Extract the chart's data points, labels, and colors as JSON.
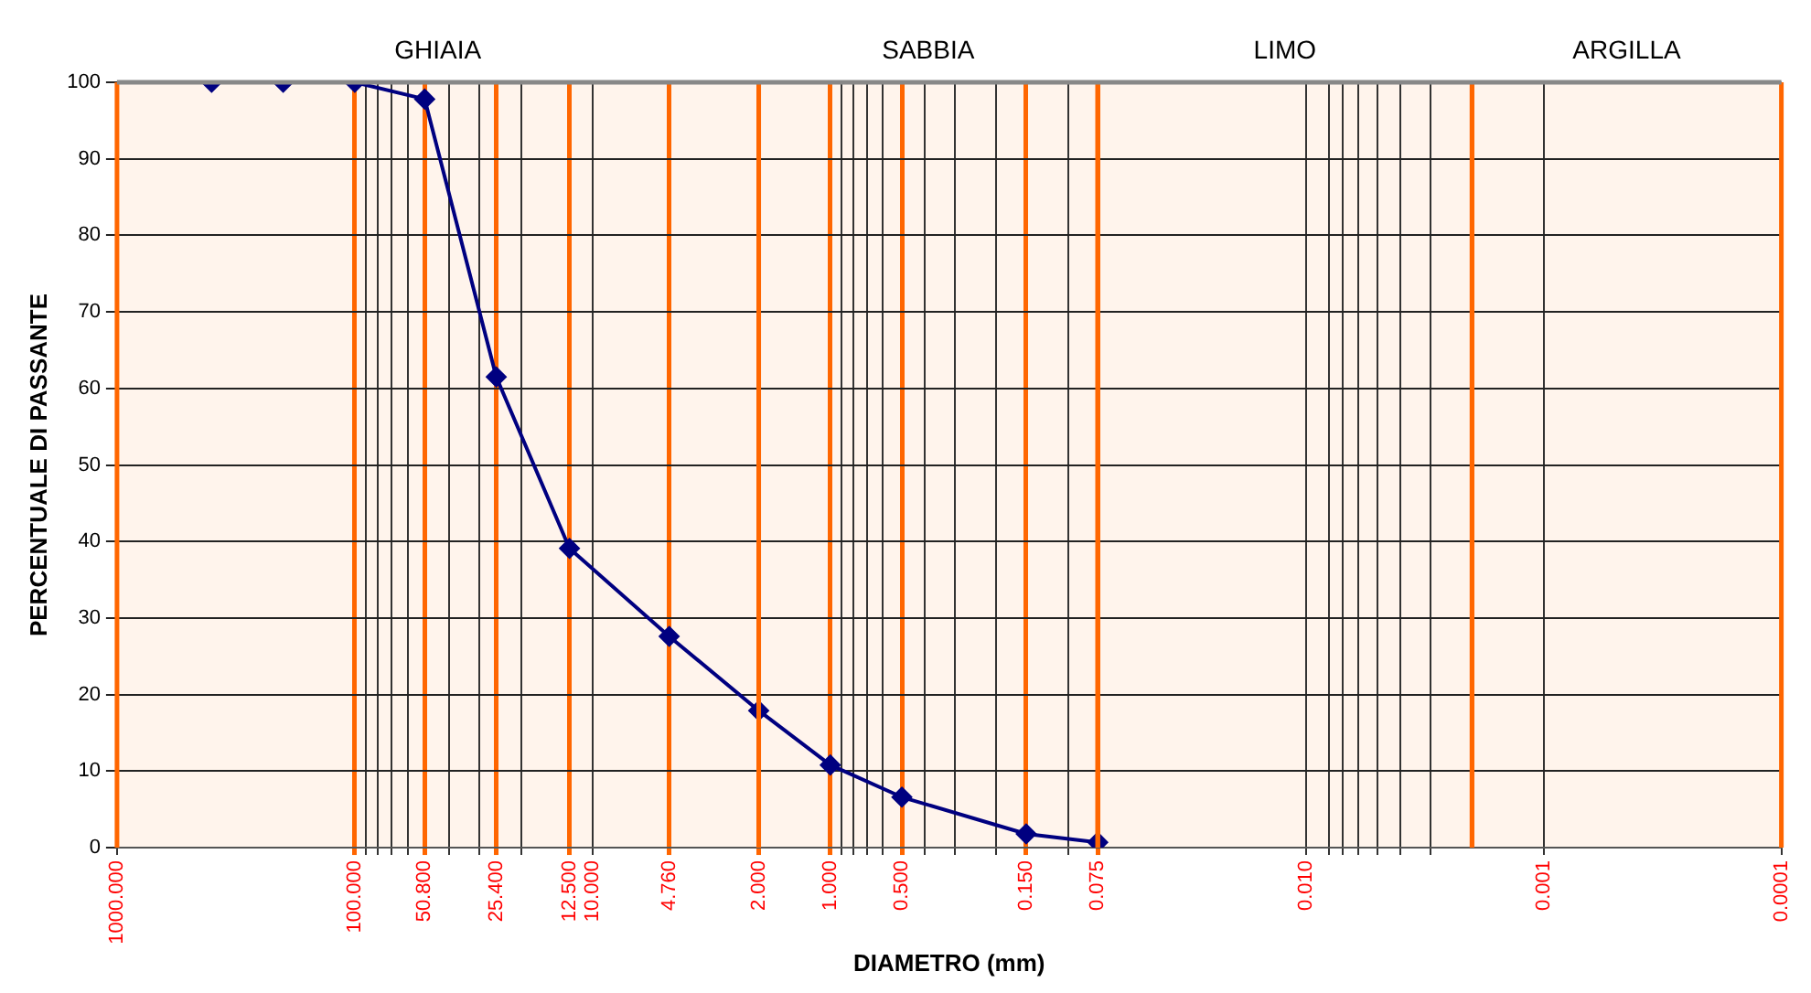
{
  "chart_data": {
    "type": "line",
    "xlabel": "DIAMETRO (mm)",
    "ylabel": "PERCENTUALE DI PASSANTE",
    "x": [
      400,
      200,
      100,
      50.8,
      25.4,
      12.5,
      4.76,
      2,
      1,
      0.5,
      0.15,
      0.075
    ],
    "series": [
      {
        "color": "#000080",
        "values": [
          100,
          100,
          100,
          97.8,
          61.5,
          39.1,
          27.6,
          17.9,
          10.8,
          6.6,
          1.8,
          0.7
        ]
      }
    ],
    "log": "x",
    "xlim": [
      1000,
      0.0001
    ],
    "ylim": [
      0,
      100
    ],
    "xticks": [
      {
        "value": 1000,
        "label": "1000.000"
      },
      {
        "value": 100,
        "label": "100.000"
      },
      {
        "value": 90,
        "label": null
      },
      {
        "value": 80,
        "label": null
      },
      {
        "value": 70,
        "label": null
      },
      {
        "value": 60,
        "label": null
      },
      {
        "value": 50.8,
        "label": "50.800"
      },
      {
        "value": 40,
        "label": null
      },
      {
        "value": 30,
        "label": null
      },
      {
        "value": 25.4,
        "label": "25.400"
      },
      {
        "value": 20,
        "label": null
      },
      {
        "value": 12.5,
        "label": "12.500"
      },
      {
        "value": 10,
        "label": "10.000"
      },
      {
        "value": 4.76,
        "label": "4.760"
      },
      {
        "value": 2,
        "label": "2.000"
      },
      {
        "value": 1,
        "label": "1.000"
      },
      {
        "value": 0.9,
        "label": null
      },
      {
        "value": 0.8,
        "label": null
      },
      {
        "value": 0.7,
        "label": null
      },
      {
        "value": 0.6,
        "label": null
      },
      {
        "value": 0.5,
        "label": "0.500"
      },
      {
        "value": 0.4,
        "label": null
      },
      {
        "value": 0.3,
        "label": null
      },
      {
        "value": 0.2,
        "label": null
      },
      {
        "value": 0.15,
        "label": "0.150"
      },
      {
        "value": 0.1,
        "label": null
      },
      {
        "value": 0.075,
        "label": "0.075"
      },
      {
        "value": 0.01,
        "label": "0.010"
      },
      {
        "value": 0.008,
        "label": null
      },
      {
        "value": 0.007,
        "label": null
      },
      {
        "value": 0.006,
        "label": null
      },
      {
        "value": 0.005,
        "label": null
      },
      {
        "value": 0.004,
        "label": null
      },
      {
        "value": 0.003,
        "label": null
      },
      {
        "value": 0.001,
        "label": "0.001"
      },
      {
        "value": 0.0001,
        "label": "0.0001"
      }
    ],
    "yticks": [
      0,
      10,
      20,
      30,
      40,
      50,
      60,
      70,
      80,
      90,
      100
    ],
    "grid": true,
    "marker": "diamond",
    "line_style": "solid",
    "bands": [
      {
        "axis": "x",
        "from": 1000,
        "to": 2,
        "label": "GHIAIA",
        "color": "#fff4ec"
      },
      {
        "axis": "x",
        "from": 2,
        "to": 0.075,
        "label": "SABBIA",
        "color": "#fff4ec"
      },
      {
        "axis": "x",
        "from": 0.075,
        "to": 0.002,
        "label": "LIMO",
        "color": "#fff4ec"
      },
      {
        "axis": "x",
        "from": 0.002,
        "to": 0.0001,
        "label": "ARGILLA",
        "color": "#fff4ec"
      }
    ]
  }
}
